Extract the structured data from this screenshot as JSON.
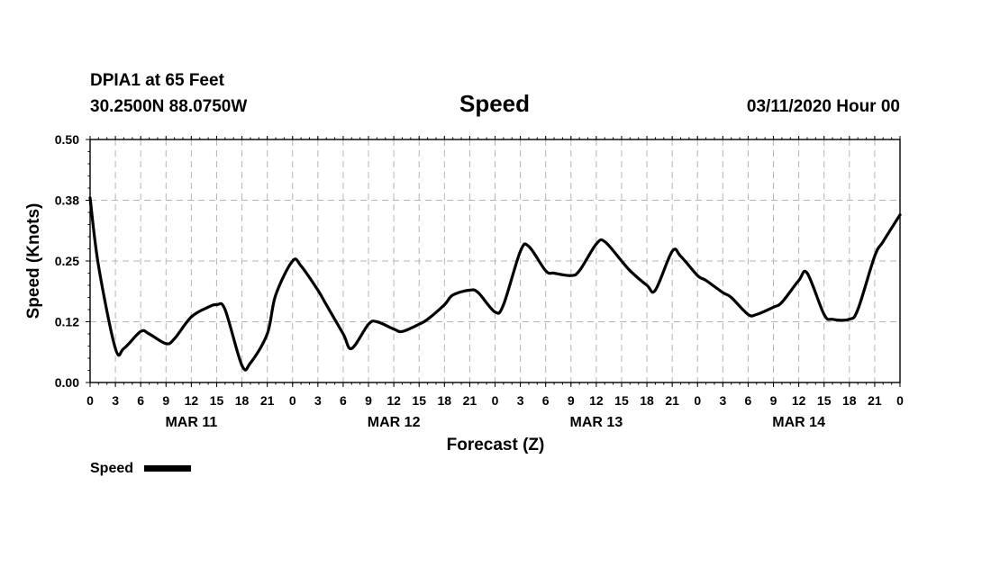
{
  "header": {
    "station": "DPIA1 at 65 Feet",
    "coords": "30.2500N 88.0750W",
    "datetime": "03/11/2020 Hour 00"
  },
  "colors": {
    "series": "#000000",
    "grid": "#b4b4b4",
    "background": "#ffffff"
  },
  "chart_data": {
    "type": "line",
    "title": "Speed",
    "xlabel": "Forecast (Z)",
    "ylabel": "Speed (Knots)",
    "ylim": [
      0,
      0.5
    ],
    "yticks": [
      "0.00",
      "0.12",
      "0.25",
      "0.38",
      "0.50"
    ],
    "xlim": [
      0,
      96
    ],
    "xtick_labels": [
      "0",
      "3",
      "6",
      "9",
      "12",
      "15",
      "18",
      "21",
      "0",
      "3",
      "6",
      "9",
      "12",
      "15",
      "18",
      "21",
      "0",
      "3",
      "6",
      "9",
      "12",
      "15",
      "18",
      "21",
      "0",
      "3",
      "6",
      "9",
      "12",
      "15",
      "18",
      "21",
      "0"
    ],
    "days": [
      "MAR 11",
      "MAR 12",
      "MAR 13",
      "MAR 14"
    ],
    "grid": true,
    "legend": "bottom-left",
    "series": [
      {
        "name": "Speed",
        "x": [
          0,
          1,
          3,
          4,
          6,
          7,
          9,
          10,
          12,
          14,
          15,
          16,
          18,
          19,
          21,
          22,
          24,
          25,
          27,
          28,
          30,
          31,
          33,
          34,
          36,
          37,
          39,
          40,
          42,
          43,
          45,
          46,
          48,
          49,
          51,
          52,
          54,
          55,
          57,
          58,
          60,
          61,
          63,
          64,
          66,
          67,
          69,
          70,
          72,
          73,
          75,
          76,
          78,
          79,
          81,
          82,
          84,
          85,
          87,
          88,
          90,
          91,
          93,
          94,
          96
        ],
        "y": [
          0.38,
          0.24,
          0.07,
          0.07,
          0.105,
          0.1,
          0.08,
          0.09,
          0.135,
          0.155,
          0.16,
          0.15,
          0.035,
          0.04,
          0.1,
          0.18,
          0.25,
          0.24,
          0.19,
          0.16,
          0.1,
          0.07,
          0.12,
          0.125,
          0.11,
          0.105,
          0.12,
          0.13,
          0.16,
          0.18,
          0.19,
          0.185,
          0.145,
          0.16,
          0.27,
          0.28,
          0.23,
          0.225,
          0.22,
          0.23,
          0.285,
          0.29,
          0.25,
          0.23,
          0.2,
          0.19,
          0.27,
          0.26,
          0.22,
          0.21,
          0.185,
          0.175,
          0.14,
          0.14,
          0.155,
          0.165,
          0.21,
          0.225,
          0.14,
          0.13,
          0.13,
          0.15,
          0.26,
          0.29,
          0.345
        ]
      }
    ]
  }
}
